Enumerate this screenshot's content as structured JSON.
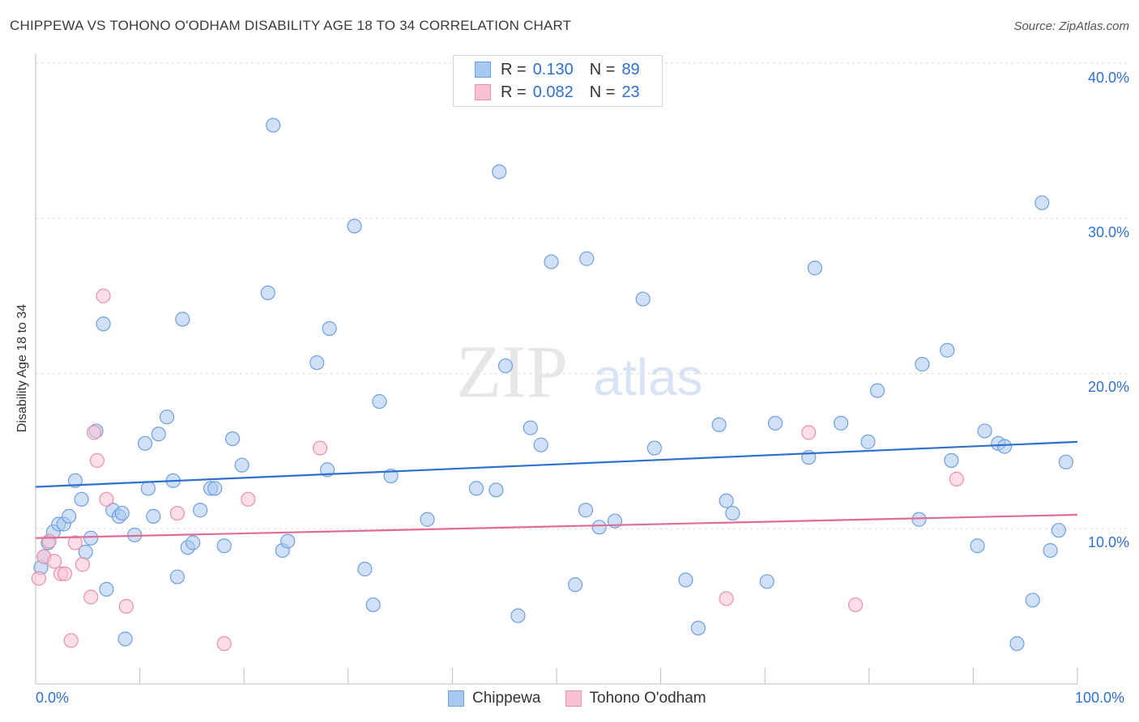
{
  "title": "CHIPPEWA VS TOHONO O'ODHAM DISABILITY AGE 18 TO 34 CORRELATION CHART",
  "source": "Source: ZipAtlas.com",
  "watermark": {
    "zip": "ZIP",
    "atlas": "atlas"
  },
  "legend": {
    "rows": [
      {
        "r_label": "R =",
        "r_value": "0.130",
        "n_label": "N =",
        "n_value": "89",
        "color": "#a9c8f0",
        "border": "#6f9fe0"
      },
      {
        "r_label": "R =",
        "r_value": "0.082",
        "n_label": "N =",
        "n_value": "23",
        "color": "#f8c2d2",
        "border": "#ea8fab"
      }
    ]
  },
  "bottom_legend": [
    {
      "label": "Chippewa",
      "color": "#a9c8f0",
      "border": "#6f9fe0"
    },
    {
      "label": "Tohono O'odham",
      "color": "#f8c2d2",
      "border": "#ea8fab"
    }
  ],
  "chart_data": {
    "type": "scatter",
    "title": "CHIPPEWA VS TOHONO O'ODHAM DISABILITY AGE 18 TO 34 CORRELATION CHART",
    "xlabel": "",
    "ylabel": "Disability Age 18 to 34",
    "xlim": [
      0,
      100
    ],
    "ylim": [
      0,
      40
    ],
    "x_tick_labels": [
      "0.0%",
      "100.0%"
    ],
    "y_ticks": [
      10,
      20,
      30,
      40
    ],
    "y_tick_labels": [
      "10.0%",
      "20.0%",
      "30.0%",
      "40.0%"
    ],
    "grid": true,
    "legend_position": "top-center",
    "series": [
      {
        "name": "Chippewa",
        "color": "#a9c8f0",
        "edge": "#6f9fe0",
        "trend": {
          "x": [
            0,
            100
          ],
          "y": [
            12.7,
            15.6
          ],
          "color": "#2f6fd0"
        },
        "points": [
          [
            0.5,
            7.5
          ],
          [
            0.8,
            8.2
          ],
          [
            1.2,
            9.1
          ],
          [
            1.7,
            9.8
          ],
          [
            2.2,
            10.3
          ],
          [
            2.7,
            10.3
          ],
          [
            3.2,
            10.8
          ],
          [
            3.8,
            13.1
          ],
          [
            4.4,
            11.9
          ],
          [
            4.8,
            8.5
          ],
          [
            5.3,
            9.4
          ],
          [
            5.8,
            16.3
          ],
          [
            6.5,
            23.2
          ],
          [
            6.8,
            6.1
          ],
          [
            7.4,
            11.2
          ],
          [
            8.0,
            10.8
          ],
          [
            8.3,
            11.0
          ],
          [
            8.6,
            2.9
          ],
          [
            9.5,
            9.6
          ],
          [
            10.5,
            15.5
          ],
          [
            10.8,
            12.6
          ],
          [
            11.3,
            10.8
          ],
          [
            11.8,
            16.1
          ],
          [
            12.6,
            17.2
          ],
          [
            13.2,
            13.1
          ],
          [
            13.6,
            6.9
          ],
          [
            14.1,
            23.5
          ],
          [
            14.6,
            8.8
          ],
          [
            15.1,
            9.1
          ],
          [
            15.8,
            11.2
          ],
          [
            16.8,
            12.6
          ],
          [
            17.2,
            12.6
          ],
          [
            18.1,
            8.9
          ],
          [
            18.9,
            15.8
          ],
          [
            19.8,
            14.1
          ],
          [
            22.3,
            25.2
          ],
          [
            22.8,
            36.0
          ],
          [
            23.7,
            8.6
          ],
          [
            24.2,
            9.2
          ],
          [
            27.0,
            20.7
          ],
          [
            28.0,
            13.8
          ],
          [
            28.2,
            22.9
          ],
          [
            30.6,
            29.5
          ],
          [
            31.6,
            7.4
          ],
          [
            32.4,
            5.1
          ],
          [
            33.0,
            18.2
          ],
          [
            34.1,
            13.4
          ],
          [
            37.6,
            10.6
          ],
          [
            42.3,
            12.6
          ],
          [
            44.2,
            12.5
          ],
          [
            44.5,
            33.0
          ],
          [
            45.1,
            20.5
          ],
          [
            46.3,
            4.4
          ],
          [
            47.5,
            16.5
          ],
          [
            48.5,
            15.4
          ],
          [
            49.5,
            27.2
          ],
          [
            51.8,
            6.4
          ],
          [
            52.8,
            11.2
          ],
          [
            52.9,
            27.4
          ],
          [
            54.1,
            10.1
          ],
          [
            55.6,
            10.5
          ],
          [
            58.3,
            24.8
          ],
          [
            59.4,
            15.2
          ],
          [
            62.4,
            6.7
          ],
          [
            63.6,
            3.6
          ],
          [
            65.6,
            16.7
          ],
          [
            66.3,
            11.8
          ],
          [
            66.9,
            11.0
          ],
          [
            70.2,
            6.6
          ],
          [
            71.0,
            16.8
          ],
          [
            74.2,
            14.6
          ],
          [
            74.8,
            26.8
          ],
          [
            77.3,
            16.8
          ],
          [
            79.9,
            15.6
          ],
          [
            80.8,
            18.9
          ],
          [
            84.8,
            10.6
          ],
          [
            85.1,
            20.6
          ],
          [
            87.5,
            21.5
          ],
          [
            87.9,
            14.4
          ],
          [
            90.4,
            8.9
          ],
          [
            91.1,
            16.3
          ],
          [
            92.4,
            15.5
          ],
          [
            93.0,
            15.3
          ],
          [
            94.2,
            2.6
          ],
          [
            95.7,
            5.4
          ],
          [
            96.6,
            31.0
          ],
          [
            97.4,
            8.6
          ],
          [
            98.2,
            9.9
          ],
          [
            98.9,
            14.3
          ]
        ]
      },
      {
        "name": "Tohono O'odham",
        "color": "#f8c2d2",
        "edge": "#ea8fab",
        "trend": {
          "x": [
            0,
            100
          ],
          "y": [
            9.4,
            10.9
          ],
          "color": "#e06b93"
        },
        "points": [
          [
            0.3,
            6.8
          ],
          [
            0.8,
            8.2
          ],
          [
            1.3,
            9.2
          ],
          [
            1.8,
            7.9
          ],
          [
            2.4,
            7.1
          ],
          [
            2.8,
            7.1
          ],
          [
            3.4,
            2.8
          ],
          [
            3.8,
            9.1
          ],
          [
            4.5,
            7.7
          ],
          [
            5.3,
            5.6
          ],
          [
            5.6,
            16.2
          ],
          [
            5.9,
            14.4
          ],
          [
            6.5,
            25.0
          ],
          [
            6.8,
            11.9
          ],
          [
            8.7,
            5.0
          ],
          [
            13.6,
            11.0
          ],
          [
            18.1,
            2.6
          ],
          [
            20.4,
            11.9
          ],
          [
            27.3,
            15.2
          ],
          [
            66.3,
            5.5
          ],
          [
            74.2,
            16.2
          ],
          [
            78.7,
            5.1
          ],
          [
            88.4,
            13.2
          ]
        ]
      }
    ]
  }
}
